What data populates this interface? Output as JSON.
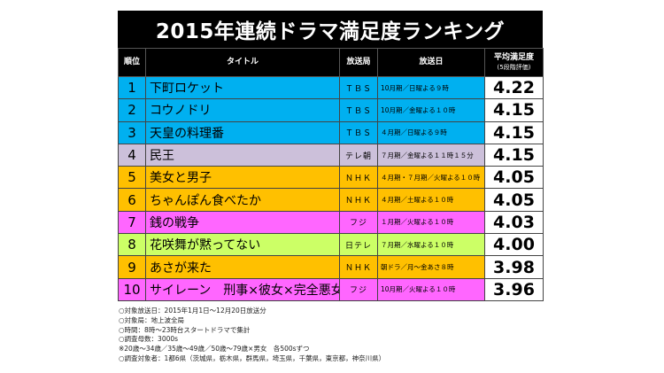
{
  "title": "2015年連続ドラマ満足度ランキング",
  "headers": {
    "rank": "順位",
    "title": "タイトル",
    "broadcaster": "放送局",
    "airdate": "放送日",
    "score": "平均満足度",
    "score_sub": "(5段階評価)"
  },
  "colors": {
    "blue": "#00b0f0",
    "lavender": "#ccc0da",
    "orange": "#ffc000",
    "magenta": "#ff66ff",
    "green": "#ccff66"
  },
  "rows": [
    {
      "rank": "1",
      "title": "下町ロケット",
      "broadcaster": "ＴＢＳ",
      "airdate": "10月期／日曜よる９時",
      "score": "4.22",
      "color": "#00b0f0"
    },
    {
      "rank": "2",
      "title": "コウノドリ",
      "broadcaster": "ＴＢＳ",
      "airdate": "10月期／金曜よる１０時",
      "score": "4.15",
      "color": "#00b0f0"
    },
    {
      "rank": "3",
      "title": "天皇の料理番",
      "broadcaster": "ＴＢＳ",
      "airdate": "４月期／日曜よる９時",
      "score": "4.15",
      "color": "#00b0f0"
    },
    {
      "rank": "4",
      "title": "民王",
      "broadcaster": "テレ朝",
      "airdate": "７月期／金曜よる１１時１５分",
      "score": "4.15",
      "color": "#ccc0da"
    },
    {
      "rank": "5",
      "title": "美女と男子",
      "broadcaster": "ＮＨＫ",
      "airdate": "４月期・７月期／火曜よる１０時",
      "score": "4.05",
      "color": "#ffc000"
    },
    {
      "rank": "6",
      "title": "ちゃんぽん食べたか",
      "broadcaster": "ＮＨＫ",
      "airdate": "４月期／土曜よる１０時",
      "score": "4.05",
      "color": "#ffc000"
    },
    {
      "rank": "7",
      "title": "銭の戦争",
      "broadcaster": "フジ",
      "airdate": "１月期／火曜よる１０時",
      "score": "4.03",
      "color": "#ff66ff"
    },
    {
      "rank": "8",
      "title": "花咲舞が黙ってない",
      "broadcaster": "日テレ",
      "airdate": "７月期／水曜よる１０時",
      "score": "4.00",
      "color": "#ccff66"
    },
    {
      "rank": "9",
      "title": "あさが来た",
      "broadcaster": "ＮＨＫ",
      "airdate": "朝ドラ／月～金あさ８時",
      "score": "3.98",
      "color": "#ffc000"
    },
    {
      "rank": "10",
      "title": "サイレーン　刑事×彼女×完全悪女",
      "broadcaster": "フジ",
      "airdate": "10月期／火曜よる１０時",
      "score": "3.96",
      "color": "#ff66ff"
    }
  ],
  "notes": [
    "○対象放送日：2015年1月1日～12月20日放送分",
    "○対象局：地上波全局",
    "○時間：8時～23時台スタートドラマで集計",
    "○調査母数：3000s",
    "※20歳～34歳／35歳～49歳／50歳～79歳×男女　各500sずつ",
    "○調査対象者：1都6県（茨城県，栃木県，群馬県，埼玉県，千葉県，東京都，神奈川県）"
  ]
}
